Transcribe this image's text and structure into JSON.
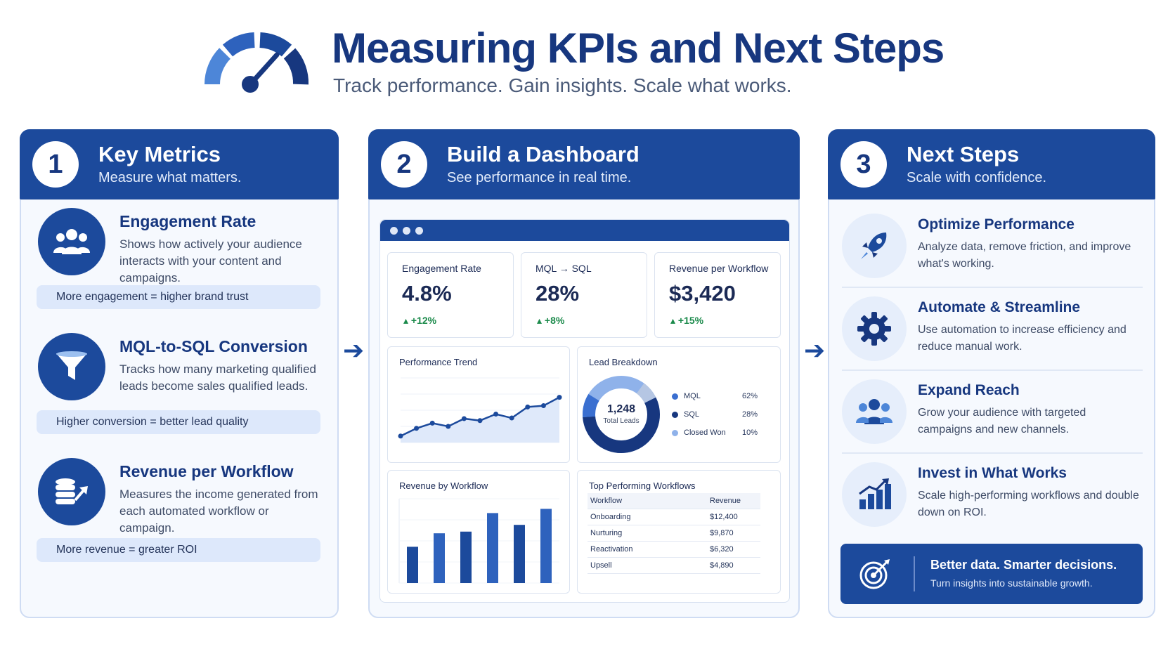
{
  "header": {
    "title": "Measuring KPIs and Next Steps",
    "subtitle": "Track performance. Gain insights. Scale what works."
  },
  "panels": [
    {
      "number": "1",
      "title": "Key Metrics",
      "subtitle": "Measure what matters."
    },
    {
      "number": "2",
      "title": "Build a Dashboard",
      "subtitle": "See performance in real time."
    },
    {
      "number": "3",
      "title": "Next Steps",
      "subtitle": "Scale with confidence."
    }
  ],
  "metrics": [
    {
      "icon": "people-icon",
      "title": "Engagement Rate",
      "description": "Shows how actively your audience interacts with your content and campaigns.",
      "note": "More engagement = higher brand trust"
    },
    {
      "icon": "funnel-icon",
      "title": "MQL-to-SQL Conversion",
      "description": "Tracks how many marketing qualified leads become sales qualified leads.",
      "note": "Higher conversion = better lead quality"
    },
    {
      "icon": "coins-growth-icon",
      "title": "Revenue per Workflow",
      "description": "Measures the income generated from each automated workflow or campaign.",
      "note": "More revenue = greater ROI"
    }
  ],
  "dashboard": {
    "kpis": [
      {
        "label": "Engagement Rate",
        "value": "4.8%",
        "delta": "+12%"
      },
      {
        "label": "MQL → SQL",
        "value": "28%",
        "delta": "+8%"
      },
      {
        "label": "Revenue per Workflow",
        "value": "$3,420",
        "delta": "+15%"
      }
    ],
    "lead_breakdown": {
      "title": "Lead Breakdown",
      "total": "1,248",
      "total_label": "Total Leads",
      "items": [
        {
          "name": "MQL",
          "pct": "62%",
          "color": "#3a6fd0"
        },
        {
          "name": "SQL",
          "pct": "28%",
          "color": "#17377f"
        },
        {
          "name": "Closed Won",
          "pct": "10%",
          "color": "#8fb2ea"
        }
      ]
    },
    "top_workflows": {
      "title": "Top Performing Workflows",
      "headers": [
        "Workflow",
        "Revenue"
      ],
      "rows": [
        [
          "Onboarding",
          "$12,400"
        ],
        [
          "Nurturing",
          "$9,870"
        ],
        [
          "Reactivation",
          "$6,320"
        ],
        [
          "Upsell",
          "$4,890"
        ]
      ]
    }
  },
  "chart_data": [
    {
      "type": "line",
      "title": "Performance Trend",
      "x": [
        1,
        2,
        3,
        4,
        5,
        6,
        7,
        8,
        9,
        10,
        11
      ],
      "y": [
        10,
        22,
        30,
        25,
        37,
        34,
        44,
        38,
        55,
        57,
        70
      ],
      "ylim": [
        0,
        100
      ]
    },
    {
      "type": "bar",
      "title": "Revenue by Workflow",
      "categories": [
        "1",
        "2",
        "3",
        "4",
        "5",
        "6"
      ],
      "values": [
        43,
        59,
        61,
        83,
        69,
        88
      ],
      "ylim": [
        0,
        100
      ]
    }
  ],
  "next_steps": [
    {
      "icon": "rocket-icon",
      "title": "Optimize Performance",
      "description": "Analyze data, remove friction, and improve what's working."
    },
    {
      "icon": "gear-icon",
      "title": "Automate & Streamline",
      "description": "Use automation to increase efficiency and reduce manual work."
    },
    {
      "icon": "people-icon",
      "title": "Expand Reach",
      "description": "Grow your audience with targeted campaigns and new channels."
    },
    {
      "icon": "bar-chart-icon",
      "title": "Invest in What Works",
      "description": "Scale high-performing workflows and double down on ROI."
    }
  ],
  "cta": {
    "title": "Better data. Smarter decisions.",
    "subtitle": "Turn insights into sustainable growth."
  },
  "colors": {
    "primary": "#1c4a9c",
    "dark": "#17377f",
    "light": "#8fb2ea",
    "positive": "#1b8a4b"
  }
}
